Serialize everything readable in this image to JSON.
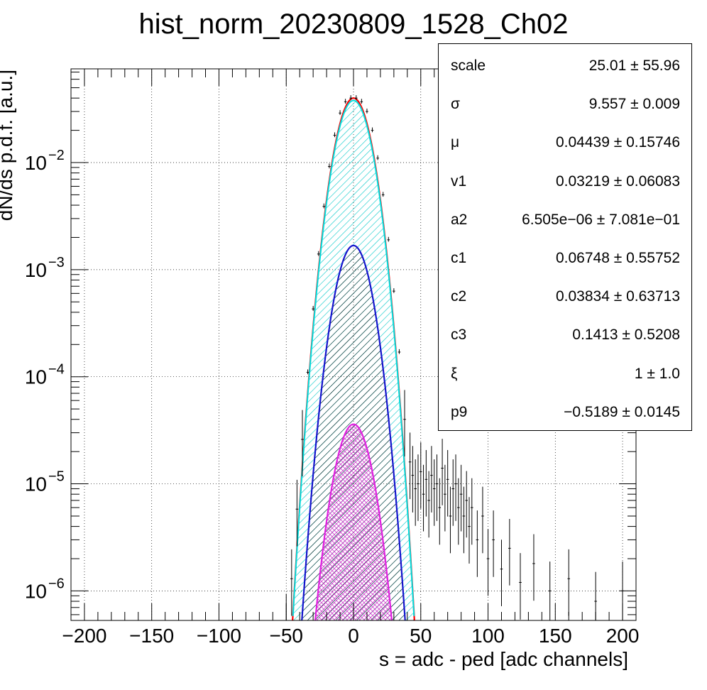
{
  "chart_data": {
    "type": "histogram",
    "title": "hist_norm_20230809_1528_Ch02",
    "xlabel": "s = adc - ped [adc channels]",
    "ylabel": "dN/ds p.d.f. [a.u.]",
    "xlim": [
      -210,
      210
    ],
    "ylim": [
      5.3e-07,
      0.075
    ],
    "yscale": "log",
    "grid": true,
    "x_ticks": [
      -200,
      -150,
      -100,
      -50,
      0,
      50,
      100,
      150,
      200
    ],
    "x_tick_labels": [
      "−200",
      "−150",
      "−100",
      "−50",
      "0",
      "50",
      "100",
      "150",
      "200"
    ],
    "y_ticks": [
      1e-06,
      1e-05,
      0.0001,
      0.001,
      0.01
    ],
    "y_tick_labels": [
      {
        "base": "10",
        "exp": "−6"
      },
      {
        "base": "10",
        "exp": "−5"
      },
      {
        "base": "10",
        "exp": "−4"
      },
      {
        "base": "10",
        "exp": "−3"
      },
      {
        "base": "10",
        "exp": "−2"
      }
    ],
    "series": [
      {
        "style": "filled curve",
        "color": "#ff0000",
        "fill": "#00c8c8",
        "hatch": "diagonal",
        "peak_x": 0,
        "peak_y": 0.04,
        "sigma": 9.557
      },
      {
        "style": "filled curve",
        "color": "#1414cc",
        "fill": "#000000",
        "hatch": "diagonal",
        "peak_x": 0,
        "peak_y": 0.00168,
        "sigma": 9.557
      },
      {
        "style": "filled curve",
        "color": "#e020e0",
        "fill": "#cc44cc",
        "hatch": "cross",
        "peak_x": 0,
        "peak_y": 3.6e-05,
        "sigma": 9.8
      },
      {
        "style": "error bars",
        "color": "#000000",
        "points": [
          {
            "x": -50,
            "y": 5e-07
          },
          {
            "x": -46,
            "y": 1.3e-06
          },
          {
            "x": -42,
            "y": 5.8e-06
          },
          {
            "x": -38,
            "y": 2.6e-05
          },
          {
            "x": -34,
            "y": 0.00011
          },
          {
            "x": -30,
            "y": 0.00043
          },
          {
            "x": -26,
            "y": 0.0014
          },
          {
            "x": -22,
            "y": 0.0039
          },
          {
            "x": -18,
            "y": 0.0092
          },
          {
            "x": -14,
            "y": 0.018
          },
          {
            "x": -10,
            "y": 0.029
          },
          {
            "x": -6,
            "y": 0.037
          },
          {
            "x": -2,
            "y": 0.04
          },
          {
            "x": 2,
            "y": 0.04
          },
          {
            "x": 6,
            "y": 0.037
          },
          {
            "x": 10,
            "y": 0.03
          },
          {
            "x": 14,
            "y": 0.02
          },
          {
            "x": 18,
            "y": 0.011
          },
          {
            "x": 22,
            "y": 0.005
          },
          {
            "x": 26,
            "y": 0.0019
          },
          {
            "x": 30,
            "y": 0.00063
          },
          {
            "x": 34,
            "y": 0.00017
          },
          {
            "x": 38,
            "y": 4e-05
          },
          {
            "x": 42,
            "y": 1.6e-05
          },
          {
            "x": 44,
            "y": 1.2e-05
          },
          {
            "x": 46,
            "y": 9e-06
          },
          {
            "x": 48,
            "y": 1e-05
          },
          {
            "x": 50,
            "y": 1.3e-05
          },
          {
            "x": 52,
            "y": 8e-06
          },
          {
            "x": 54,
            "y": 1.1e-05
          },
          {
            "x": 56,
            "y": 7e-06
          },
          {
            "x": 58,
            "y": 1.2e-05
          },
          {
            "x": 60,
            "y": 9e-06
          },
          {
            "x": 62,
            "y": 1e-05
          },
          {
            "x": 64,
            "y": 6e-06
          },
          {
            "x": 66,
            "y": 1.4e-05
          },
          {
            "x": 68,
            "y": 8e-06
          },
          {
            "x": 70,
            "y": 1.1e-05
          },
          {
            "x": 72,
            "y": 5e-06
          },
          {
            "x": 74,
            "y": 9e-06
          },
          {
            "x": 76,
            "y": 1e-05
          },
          {
            "x": 78,
            "y": 6e-06
          },
          {
            "x": 80,
            "y": 8e-06
          },
          {
            "x": 82,
            "y": 5e-06
          },
          {
            "x": 84,
            "y": 7e-06
          },
          {
            "x": 86,
            "y": 4e-06
          },
          {
            "x": 88,
            "y": 6e-06
          },
          {
            "x": 92,
            "y": 3e-06
          },
          {
            "x": 96,
            "y": 5e-06
          },
          {
            "x": 100,
            "y": 2e-06
          },
          {
            "x": 104,
            "y": 3e-06
          },
          {
            "x": 110,
            "y": 1.6e-06
          },
          {
            "x": 116,
            "y": 2.5e-06
          },
          {
            "x": 124,
            "y": 1.2e-06
          },
          {
            "x": 134,
            "y": 1.8e-06
          },
          {
            "x": 146,
            "y": 1e-06
          },
          {
            "x": 160,
            "y": 1.3e-06
          },
          {
            "x": 180,
            "y": 8e-07
          },
          {
            "x": 200,
            "y": 1e-06
          }
        ]
      }
    ],
    "stats": [
      {
        "name": "scale",
        "value": "25.01 ± 55.96"
      },
      {
        "name": "σ",
        "value": "9.557 ± 0.009"
      },
      {
        "name": "μ",
        "value": "0.04439 ± 0.15746"
      },
      {
        "name": "v1",
        "value": "0.03219 ± 0.06083"
      },
      {
        "name": "a2",
        "value": "6.505e−06 ± 7.081e−01"
      },
      {
        "name": "c1",
        "value": "0.06748 ± 0.55752"
      },
      {
        "name": "c2",
        "value": "0.03834 ± 0.63713"
      },
      {
        "name": "c3",
        "value": "0.1413 ± 0.5208"
      },
      {
        "name": "ξ",
        "value": "1 ± 1.0"
      },
      {
        "name": "p9",
        "value": "−0.5189 ± 0.0145"
      }
    ]
  }
}
